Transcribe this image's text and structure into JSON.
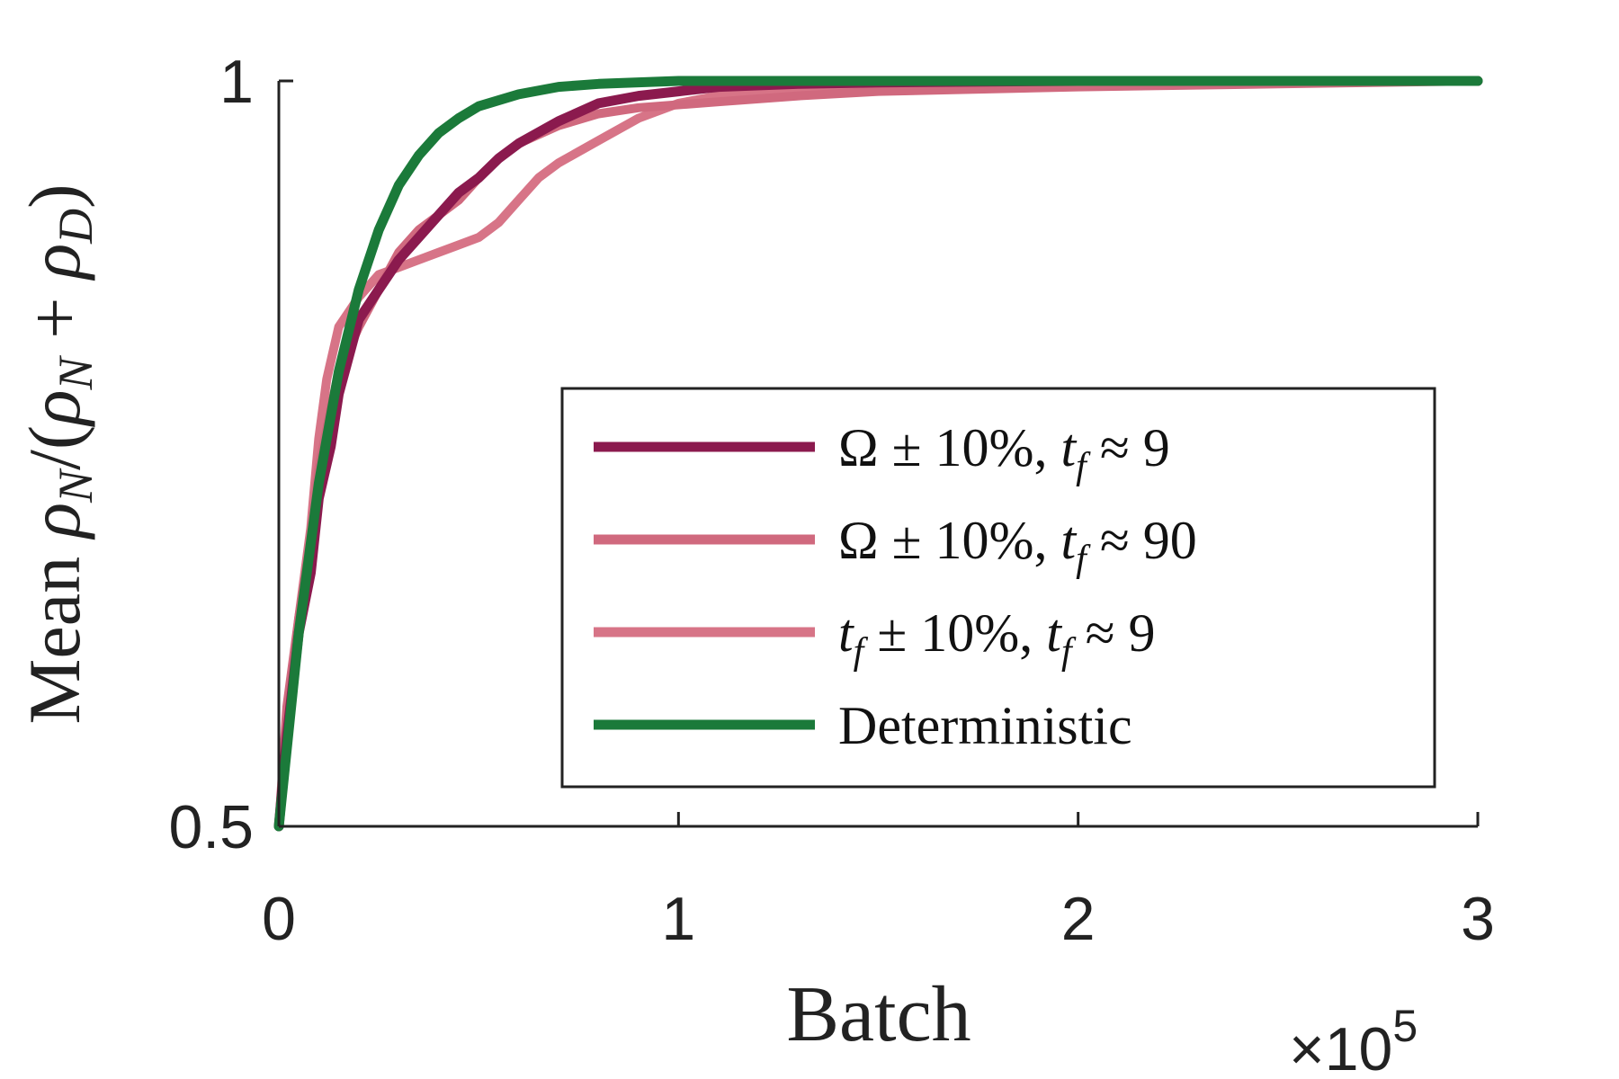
{
  "chart_data": {
    "type": "line",
    "title": "",
    "xlabel": "Batch",
    "x_multiplier": "×10",
    "x_multiplier_exponent": "5",
    "ylabel": "Mean ρ_N/(ρ_N + ρ_D)",
    "ylabel_parts": {
      "prefix": "Mean ",
      "rho": "ρ",
      "n": "N",
      "slash": "/(",
      "plus": " + ",
      "d": "D",
      "close": ")"
    },
    "xlim": [
      0,
      3
    ],
    "ylim": [
      0.5,
      1
    ],
    "xticks": [
      0,
      1,
      2,
      3
    ],
    "xtick_labels": [
      "0",
      "1",
      "2",
      "3"
    ],
    "yticks": [
      0.5,
      1
    ],
    "ytick_labels": [
      "0.5",
      "1"
    ],
    "grid": false,
    "legend_position": "center-right",
    "colors": {
      "dark_magenta": "#8b1a4e",
      "pink_a": "#d0697e",
      "pink_b": "#d77487",
      "green": "#1b7a3a"
    },
    "series": [
      {
        "name": "Ω ± 10%, t_f ≈ 9",
        "legend_parts": [
          "Ω ± 10%, ",
          "t",
          "f",
          " ≈ 9"
        ],
        "color": "#8b1a4e",
        "x": [
          0,
          0.02,
          0.05,
          0.08,
          0.1,
          0.13,
          0.15,
          0.2,
          0.25,
          0.3,
          0.35,
          0.4,
          0.45,
          0.5,
          0.55,
          0.6,
          0.7,
          0.8,
          0.9,
          1.0,
          1.1,
          1.3,
          1.5,
          2.0,
          2.5,
          3.0
        ],
        "y": [
          0.5,
          0.56,
          0.63,
          0.67,
          0.72,
          0.755,
          0.79,
          0.84,
          0.86,
          0.88,
          0.895,
          0.91,
          0.925,
          0.935,
          0.948,
          0.958,
          0.973,
          0.985,
          0.99,
          0.993,
          0.996,
          0.998,
          0.999,
          1.0,
          1.0,
          1.0
        ]
      },
      {
        "name": "Ω ± 10%, t_f ≈ 90",
        "legend_parts": [
          "Ω ± 10%, ",
          "t",
          "f",
          " ≈ 90"
        ],
        "color": "#d0697e",
        "x": [
          0,
          0.02,
          0.05,
          0.08,
          0.1,
          0.13,
          0.15,
          0.2,
          0.25,
          0.3,
          0.35,
          0.4,
          0.45,
          0.5,
          0.55,
          0.6,
          0.7,
          0.8,
          0.9,
          1.0,
          1.1,
          1.3,
          1.5,
          2.0,
          2.5,
          3.0
        ],
        "y": [
          0.5,
          0.58,
          0.64,
          0.69,
          0.74,
          0.78,
          0.805,
          0.835,
          0.86,
          0.885,
          0.9,
          0.91,
          0.92,
          0.935,
          0.948,
          0.958,
          0.97,
          0.978,
          0.982,
          0.984,
          0.986,
          0.99,
          0.993,
          0.996,
          0.998,
          1.0
        ]
      },
      {
        "name": "t_f ± 10%, t_f ≈ 9",
        "legend_parts": [
          "t",
          "f",
          " ± 10%, ",
          "t",
          "f",
          " ≈ 9"
        ],
        "color": "#d77487",
        "x": [
          0,
          0.02,
          0.05,
          0.08,
          0.1,
          0.12,
          0.15,
          0.2,
          0.25,
          0.3,
          0.35,
          0.4,
          0.45,
          0.5,
          0.55,
          0.6,
          0.65,
          0.7,
          0.8,
          0.9,
          1.0,
          1.1,
          1.3,
          1.5,
          2.0,
          2.5,
          3.0
        ],
        "y": [
          0.5,
          0.57,
          0.64,
          0.7,
          0.76,
          0.8,
          0.835,
          0.855,
          0.87,
          0.875,
          0.88,
          0.885,
          0.89,
          0.895,
          0.905,
          0.92,
          0.935,
          0.945,
          0.96,
          0.975,
          0.985,
          0.99,
          0.994,
          0.996,
          0.998,
          0.999,
          1.0
        ]
      },
      {
        "name": "Deterministic",
        "legend_parts": [
          "Deterministic"
        ],
        "color": "#1b7a3a",
        "x": [
          0,
          0.05,
          0.1,
          0.15,
          0.2,
          0.25,
          0.3,
          0.35,
          0.4,
          0.45,
          0.5,
          0.6,
          0.7,
          0.8,
          1.0,
          1.5,
          2.0,
          3.0
        ],
        "y": [
          0.5,
          0.63,
          0.73,
          0.805,
          0.86,
          0.9,
          0.93,
          0.95,
          0.965,
          0.975,
          0.983,
          0.991,
          0.996,
          0.998,
          1.0,
          1.0,
          1.0,
          1.0
        ]
      }
    ]
  }
}
